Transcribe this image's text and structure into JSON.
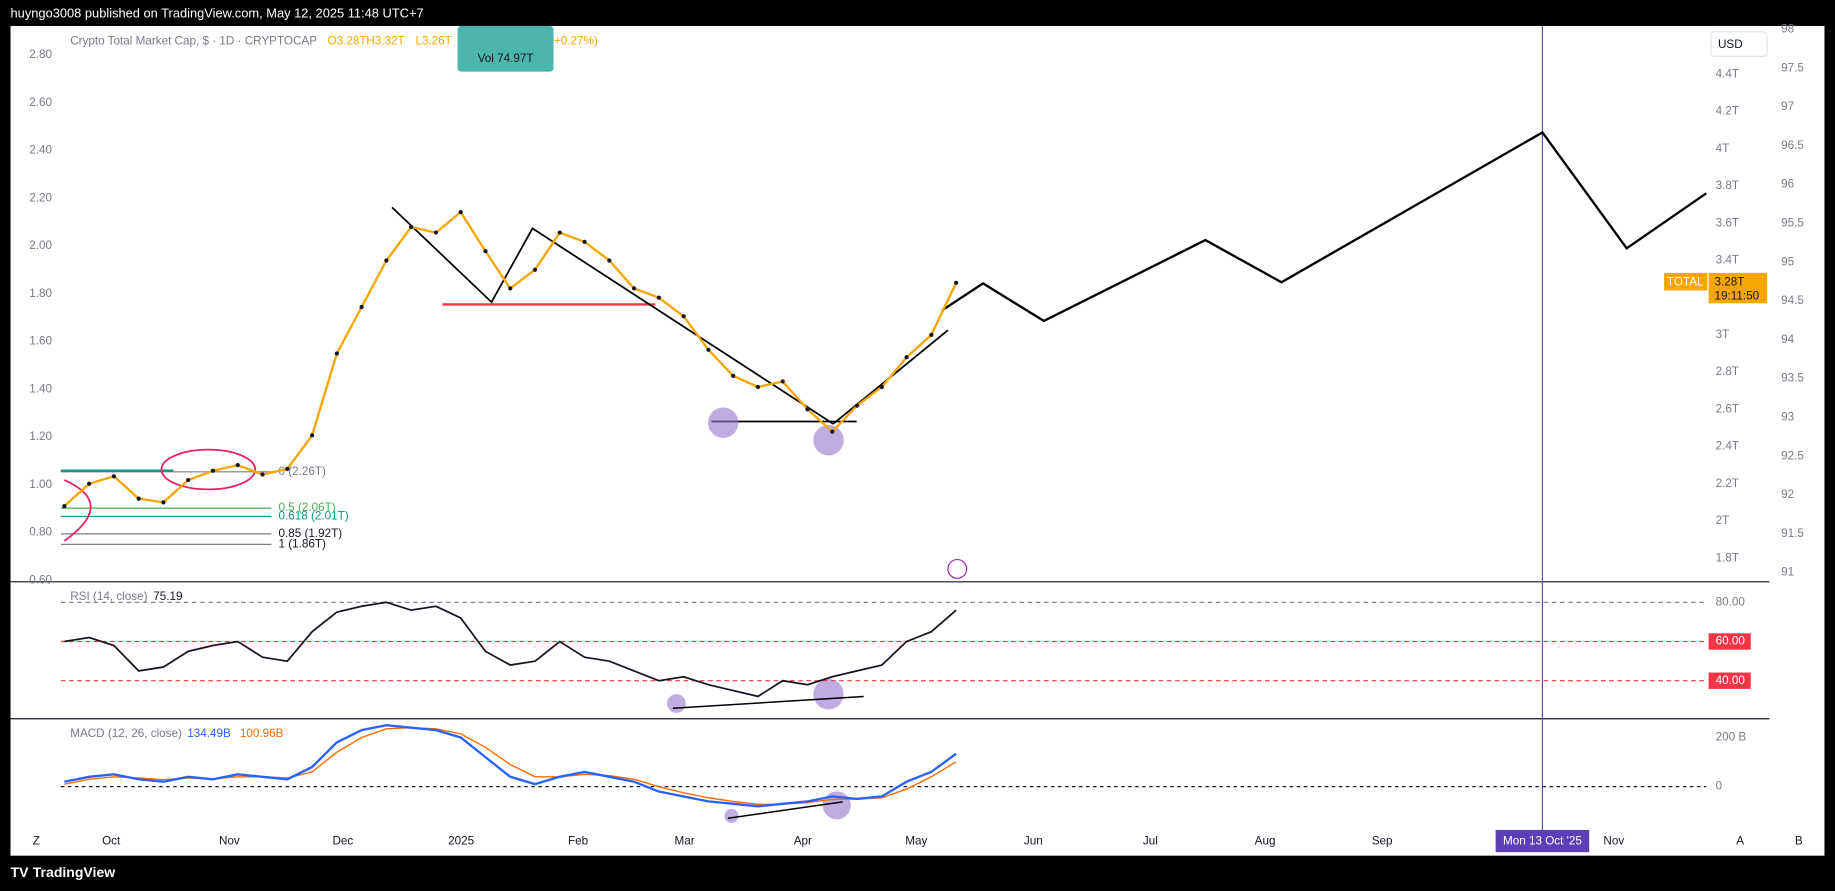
{
  "header": {
    "publisher": "huyngo3008 published on TradingView.com, May 12, 2025 11:48 UTC+7"
  },
  "footer": {
    "brand": "TradingView"
  },
  "legend": {
    "symbol": "Crypto Total Market Cap, $ · 1D · CRYPTOCAP",
    "open": "O3.28T",
    "high": "H3.32T",
    "low": "L3.26T",
    "change": "(+0.27%)",
    "volume": "Vol 74.97T"
  },
  "price_pane": {
    "currency": "USD",
    "left_ticks": [
      {
        "value": 2.8,
        "label": "2.80"
      },
      {
        "value": 2.6,
        "label": "2.60"
      },
      {
        "value": 2.4,
        "label": "2.40"
      },
      {
        "value": 2.2,
        "label": "2.20"
      },
      {
        "value": 2,
        "label": "2.00"
      },
      {
        "value": 1.8,
        "label": "1.80"
      },
      {
        "value": 1.6,
        "label": "1.60"
      },
      {
        "value": 1.4,
        "label": "1.40"
      },
      {
        "value": 1.2,
        "label": "1.20"
      },
      {
        "value": 1,
        "label": "1.00"
      },
      {
        "value": 0.8,
        "label": "0.80"
      },
      {
        "value": 0.6,
        "label": "0.60"
      }
    ],
    "right_ticks": [
      {
        "value": 4.4,
        "label": "4.4T"
      },
      {
        "value": 4.2,
        "label": "4.2T"
      },
      {
        "value": 4,
        "label": "4T"
      },
      {
        "value": 3.8,
        "label": "3.8T"
      },
      {
        "value": 3.6,
        "label": "3.6T"
      },
      {
        "value": 3.4,
        "label": "3.4T"
      },
      {
        "value": 3,
        "label": "3T"
      },
      {
        "value": 2.8,
        "label": "2.8T"
      },
      {
        "value": 2.6,
        "label": "2.6T"
      },
      {
        "value": 2.4,
        "label": "2.4T"
      },
      {
        "value": 2.2,
        "label": "2.2T"
      },
      {
        "value": 2,
        "label": "2T"
      },
      {
        "value": 1.8,
        "label": "1.8T"
      }
    ],
    "right2_ticks": [
      98,
      97.5,
      97,
      96.5,
      96,
      95.5,
      95,
      94.5,
      94,
      93.5,
      93,
      92.5,
      92,
      91.5,
      91
    ],
    "badge": {
      "symbol": "TOTAL",
      "price": "3.28T",
      "countdown": "19:11:50"
    },
    "fib": [
      "0 (2.26T)",
      "0.5 (2.06T)",
      "0.618 (2.01T)",
      "0.85 (1.92T)",
      "1 (1.86T)"
    ],
    "closes": [
      2.08,
      2.2,
      2.24,
      2.12,
      2.1,
      2.22,
      2.27,
      2.3,
      2.25,
      2.28,
      2.46,
      2.9,
      3.15,
      3.4,
      3.58,
      3.55,
      3.66,
      3.45,
      3.25,
      3.35,
      3.55,
      3.5,
      3.4,
      3.25,
      3.2,
      3.1,
      2.92,
      2.78,
      2.72,
      2.75,
      2.6,
      2.48,
      2.62,
      2.72,
      2.88,
      3.0,
      3.28
    ]
  },
  "rsi": {
    "label": "RSI (14, close)",
    "current": "75.19",
    "ticks": [
      {
        "value": 80,
        "label": "80.00"
      },
      {
        "value": 60,
        "label": "60.00"
      },
      {
        "value": 40,
        "label": "40.00"
      }
    ],
    "values": [
      60,
      62,
      58,
      45,
      47,
      55,
      58,
      60,
      52,
      50,
      65,
      75,
      78,
      80,
      76,
      78,
      72,
      55,
      48,
      50,
      60,
      52,
      50,
      45,
      40,
      42,
      38,
      35,
      32,
      40,
      38,
      42,
      45,
      48,
      60,
      65,
      76
    ]
  },
  "macd": {
    "label": "MACD (12, 26, close)",
    "macd_label": "134.49B",
    "signal_label": "100.96B",
    "ticks": [
      {
        "value": 200,
        "label": "200 B"
      },
      0
    ],
    "macd": [
      20,
      40,
      50,
      30,
      20,
      40,
      30,
      50,
      40,
      30,
      80,
      180,
      230,
      250,
      240,
      230,
      200,
      120,
      40,
      10,
      40,
      60,
      40,
      20,
      -20,
      -40,
      -60,
      -70,
      -80,
      -70,
      -60,
      -40,
      -50,
      -40,
      20,
      60,
      134
    ],
    "signal": [
      10,
      30,
      40,
      35,
      28,
      35,
      32,
      40,
      40,
      35,
      60,
      140,
      200,
      235,
      240,
      235,
      215,
      160,
      90,
      40,
      40,
      50,
      45,
      30,
      0,
      -25,
      -45,
      -60,
      -72,
      -72,
      -65,
      -52,
      -50,
      -45,
      -10,
      40,
      101
    ]
  },
  "x_axis": {
    "labels": [
      "Oct",
      "Nov",
      "Dec",
      "2025",
      "Feb",
      "Mar",
      "Apr",
      "May",
      "Jun",
      "Jul",
      "Aug",
      "Sep",
      "Nov"
    ],
    "cursor": "Mon 13 Oct '25",
    "left_button": "Z",
    "auto_button": "A",
    "log_button": "B"
  }
}
